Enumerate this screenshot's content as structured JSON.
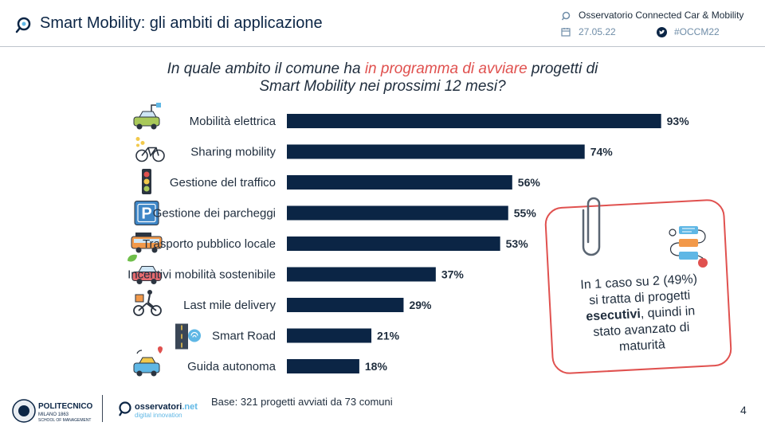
{
  "header": {
    "title": "Smart Mobility: gli ambiti di applicazione",
    "observatory": "Osservatorio Connected Car & Mobility",
    "date": "27.05.22",
    "hashtag": "#OCCM22"
  },
  "question": {
    "part1": "In quale ambito il comune ha ",
    "highlight": "in programma di avviare",
    "part2": " progetti di",
    "line2": "Smart Mobility nei prossimi 12 mesi?"
  },
  "chart_data": {
    "type": "bar",
    "orientation": "horizontal",
    "categories": [
      "Mobilità elettrica",
      "Sharing mobility",
      "Gestione del traffico",
      "Gestione dei parcheggi",
      "Trasporto pubblico locale",
      "Incentivi mobilità sostenibile",
      "Last mile delivery",
      "Smart Road",
      "Guida autonoma"
    ],
    "values": [
      93,
      74,
      56,
      55,
      53,
      37,
      29,
      21,
      18
    ],
    "value_labels": [
      "93%",
      "74%",
      "56%",
      "55%",
      "53%",
      "37%",
      "29%",
      "21%",
      "18%"
    ],
    "icons": [
      "electric-car-icon",
      "bike-sharing-icon",
      "traffic-light-icon",
      "parking-icon",
      "bus-icon",
      "eco-car-icon",
      "delivery-rider-icon",
      "smart-road-icon",
      "autonomous-car-icon"
    ],
    "unit": "%",
    "xlim": [
      0,
      100
    ],
    "bar_color": "#0b2545",
    "title": "In quale ambito il comune ha in programma di avviare progetti di Smart Mobility nei prossimi 12 mesi?"
  },
  "callout": {
    "line1": "In 1 caso su 2 (49%)",
    "line2": "si tratta di progetti",
    "line3_bold": "esecutivi",
    "line3_rest": ", quindi in",
    "line4": "stato avanzato di",
    "line5": "maturità"
  },
  "footer": {
    "base_note": "Base: 321 progetti  avviati da 73 comuni",
    "page_number": "4",
    "logo_polimi_main": "POLITECNICO",
    "logo_polimi_sub": "MILANO 1863",
    "logo_polimi_school": "SCHOOL OF MANAGEMENT",
    "logo_osservatori_main": "osservatori",
    "logo_osservatori_net": ".net",
    "logo_osservatori_sub": "digital innovation"
  },
  "colors": {
    "navy": "#0b2545",
    "accent_red": "#e0514f",
    "muted_blue": "#6f8da8"
  }
}
